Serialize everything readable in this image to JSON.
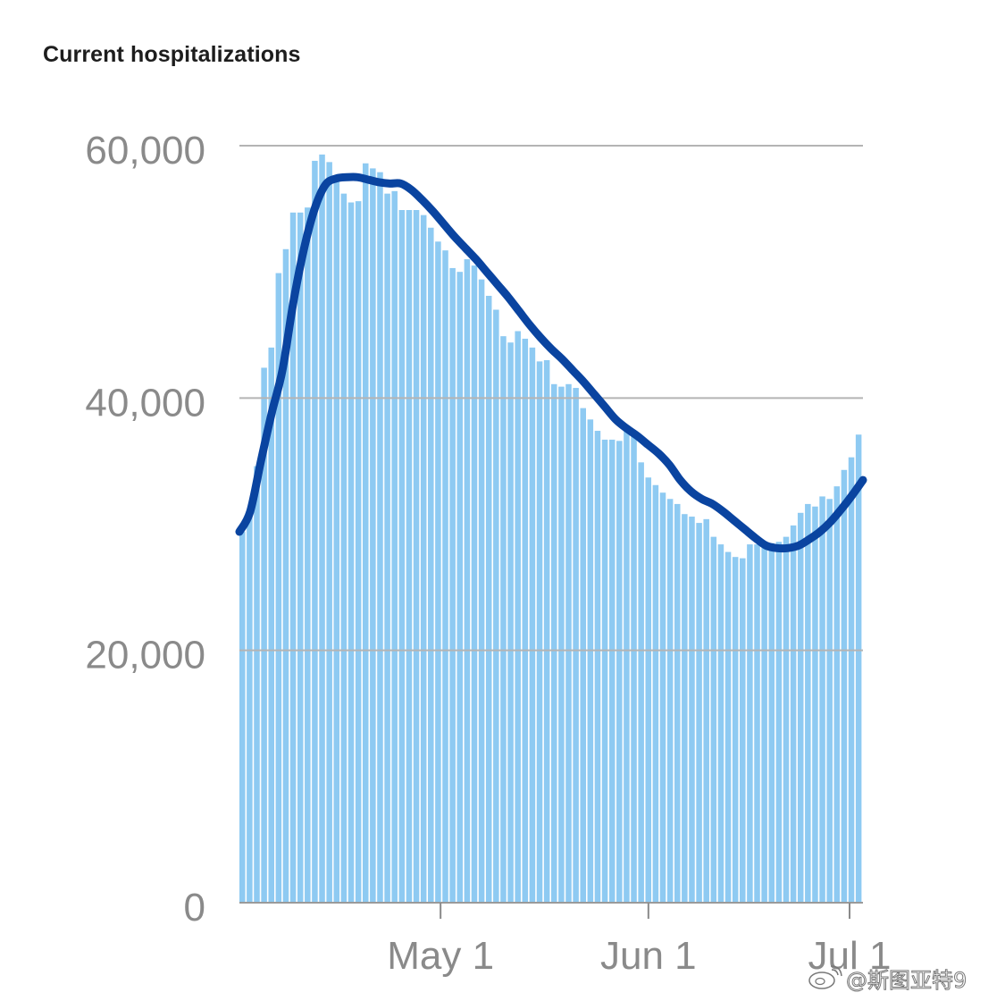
{
  "title": "Current hospitalizations",
  "watermark": "@斯图亚特9",
  "colors": {
    "bar": "#8ecaf2",
    "line": "#0a44a0",
    "grid": "#b4b4b4",
    "tick_label": "#8a8a8a",
    "title": "#1d1d1d"
  },
  "chart_data": {
    "type": "bar",
    "title": "Current hospitalizations",
    "xlabel": "",
    "ylabel": "",
    "ylim": [
      0,
      60000
    ],
    "y_ticks": [
      0,
      20000,
      40000,
      60000
    ],
    "y_tick_labels": [
      "0",
      "20,000",
      "40,000",
      "60,000"
    ],
    "x_ticks": [
      {
        "day": 17,
        "label": "May 1"
      },
      {
        "day": 48,
        "label": "Jun 1"
      },
      {
        "day": 78,
        "label": "Jul 1"
      }
    ],
    "grid": true,
    "legend": "none",
    "series": [
      {
        "type": "bar",
        "values": [
          29400,
          30700,
          34600,
          42400,
          44000,
          49900,
          51800,
          54700,
          54700,
          55100,
          58800,
          59300,
          58700,
          57300,
          56200,
          55500,
          55600,
          58600,
          58200,
          57900,
          56200,
          56400,
          54900,
          54900,
          54900,
          54500,
          53500,
          52400,
          51700,
          50300,
          50000,
          51000,
          50500,
          49400,
          48100,
          47000,
          44900,
          44400,
          45300,
          44700,
          44000,
          42900,
          43000,
          41100,
          40900,
          41100,
          40800,
          39200,
          38300,
          37400,
          36700,
          36700,
          36600,
          37500,
          37300,
          34900,
          33700,
          33100,
          32500,
          32000,
          31600,
          30800,
          30600,
          30100,
          30400,
          29000,
          28400,
          27800,
          27400,
          27300,
          28400,
          28400,
          28400,
          28500,
          28600,
          29000,
          29900,
          30900,
          31600,
          31400,
          32200,
          32000,
          33000,
          34300,
          35300,
          37100
        ]
      },
      {
        "type": "line",
        "values": [
          29400,
          31000,
          35000,
          38800,
          42200,
          47500,
          51800,
          55000,
          56900,
          57400,
          57500,
          57500,
          57300,
          57100,
          57000,
          57000,
          56500,
          55700,
          54800,
          53800,
          52800,
          51900,
          51000,
          50000,
          49000,
          48000,
          46900,
          45800,
          44800,
          43900,
          43100,
          42200,
          41300,
          40300,
          39300,
          38300,
          37600,
          37000,
          36300,
          35600,
          34700,
          33500,
          32600,
          32000,
          31600,
          31000,
          30300,
          29600,
          28900,
          28300,
          28100,
          28100,
          28300,
          28800,
          29400,
          30200,
          31200,
          32300,
          33500
        ]
      }
    ],
    "x_range": [
      -13,
      80
    ]
  }
}
